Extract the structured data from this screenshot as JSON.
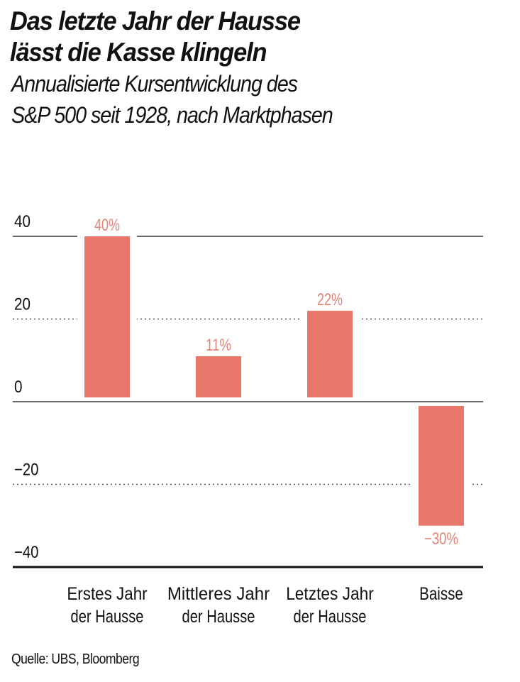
{
  "title": [
    "Das letzte Jahr der Hausse",
    "lässt die Kasse klingeln"
  ],
  "subtitle": [
    "Annualisierte Kursentwicklung des",
    "S&P 500 seit 1928, nach Marktphasen"
  ],
  "source": "Quelle: UBS, Bloomberg",
  "chart_data": {
    "type": "bar",
    "categories": [
      [
        "Erstes Jahr",
        "der Hausse"
      ],
      [
        "Mittleres Jahr",
        "der Hausse"
      ],
      [
        "Letztes Jahr",
        "der Hausse"
      ],
      [
        "Baisse"
      ]
    ],
    "values": [
      40,
      11,
      22,
      -30
    ],
    "data_labels": [
      "40%",
      "11%",
      "22%",
      "−30%"
    ],
    "yticks": [
      40,
      20,
      0,
      -20,
      -40
    ],
    "ytick_labels": [
      "40",
      "20",
      "0",
      "−20",
      "−40"
    ],
    "ylim": [
      -40,
      40
    ],
    "grid": true,
    "bar_color": "#e8776a",
    "label_color": "#e3857b"
  }
}
